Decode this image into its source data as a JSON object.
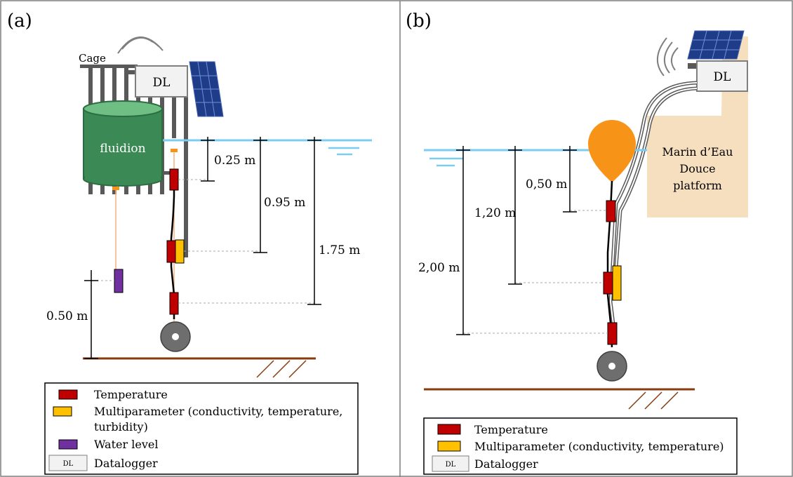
{
  "panel_a": {
    "label": "(a)",
    "cage_label": "Cage",
    "dl_label": "DL",
    "tank_label": "fluidion",
    "depth_labels": [
      "0.25 m",
      "0.95 m",
      "1.75 m",
      "0.50 m"
    ],
    "legend": {
      "temperature": "Temperature",
      "multiparameter_line1": "Multiparameter (conductivity, temperature,",
      "multiparameter_line2": "turbidity)",
      "water_level": "Water level",
      "dl_icon": "DL",
      "datalogger": "Datalogger"
    }
  },
  "panel_b": {
    "label": "(b)",
    "dl_label": "DL",
    "platform_line1": "Marin d’Eau",
    "platform_line2": "Douce",
    "platform_line3": "platform",
    "depth_labels": [
      "0,50 m",
      "1,20 m",
      "2,00 m"
    ],
    "legend": {
      "temperature": "Temperature",
      "multiparameter": "Multiparameter (conductivity, temperature)",
      "dl_icon": "DL",
      "datalogger": "Datalogger"
    }
  },
  "colors": {
    "water": "#7ccbf0",
    "temperature": "#c00000",
    "multiparameter": "#ffc000",
    "water_level": "#7030a0",
    "tank": "#3b8a55",
    "buoy": "#f79418",
    "platform": "#f5dfbe",
    "ground": "#8b3a0e",
    "solar": "#1f3c88"
  }
}
